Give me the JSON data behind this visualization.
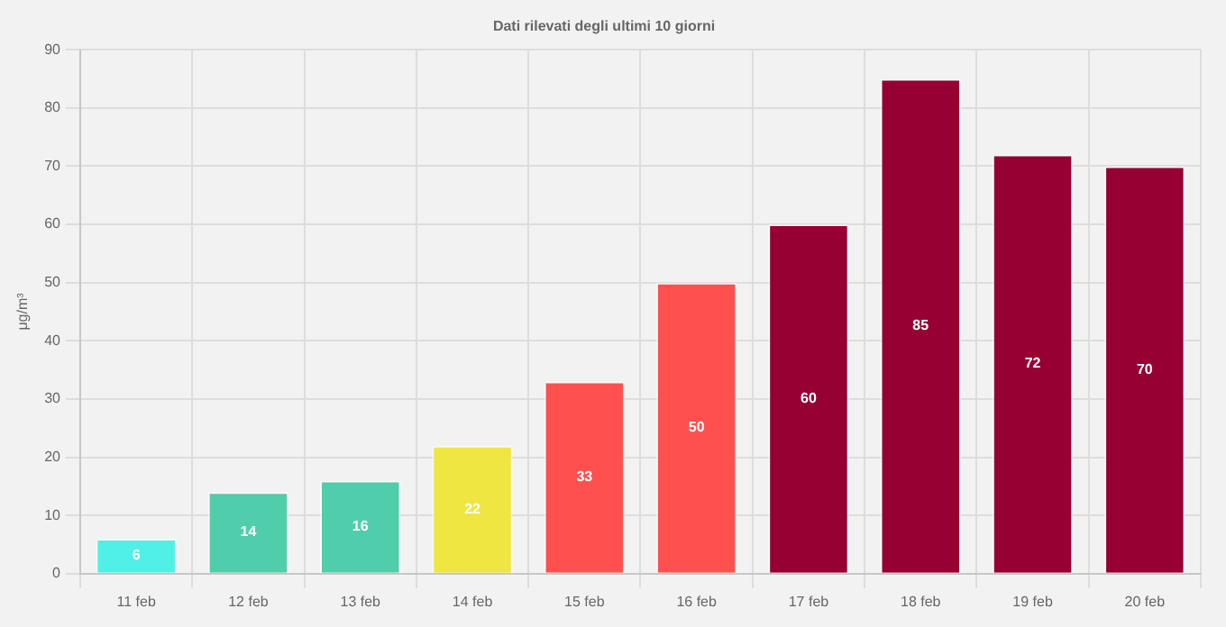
{
  "chart_data": {
    "type": "bar",
    "title": "Dati rilevati degli ultimi 10 giorni",
    "ylabel": "μg/m³",
    "categories": [
      "11 feb",
      "12 feb",
      "13 feb",
      "14 feb",
      "15 feb",
      "16 feb",
      "17 feb",
      "18 feb",
      "19 feb",
      "20 feb"
    ],
    "values": [
      6,
      14,
      16,
      22,
      33,
      50,
      60,
      85,
      72,
      70
    ],
    "colors": [
      "#50f0e6",
      "#50cdaa",
      "#50cdaa",
      "#f0e641",
      "#ff5050",
      "#ff5050",
      "#960032",
      "#960032",
      "#960032",
      "#960032"
    ],
    "ylim": [
      0,
      90
    ],
    "yticks": [
      0,
      10,
      20,
      30,
      40,
      50,
      60,
      70,
      80,
      90
    ],
    "grid": true,
    "data_labels": true,
    "legend": false
  }
}
